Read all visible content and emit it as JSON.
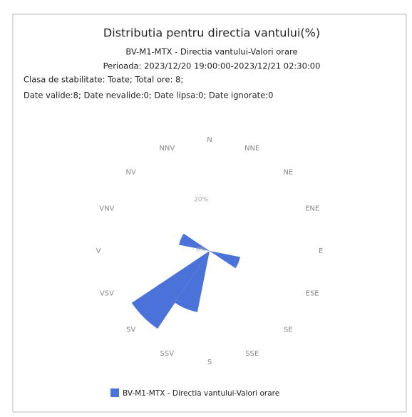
{
  "chart_data": {
    "type": "windrose",
    "title": "Distributia pentru directia vantului(%)",
    "subtitle": [
      "BV-M1-MTX - Directia vantului-Valori orare",
      "Perioada: 2023/12/20 19:00:00-2023/12/21 02:30:00"
    ],
    "annotations": [
      "Clasa de stabilitate: Toate; Total ore: 8;",
      "Date valide:8; Date nevalide:0; Date lipsa:0; Date ignorate:0"
    ],
    "categories": [
      "N",
      "NNE",
      "NE",
      "ENE",
      "E",
      "ESE",
      "SE",
      "SSE",
      "S",
      "SSV",
      "SV",
      "VSV",
      "V",
      "VNV",
      "NV",
      "NNV"
    ],
    "series": [
      {
        "name": "BV-M1-MTX - Directia vantului-Valori orare",
        "color": "#4a72d8",
        "values": [
          0,
          0,
          0,
          0,
          0,
          12.5,
          0,
          0,
          0,
          25,
          37.5,
          0,
          0,
          12.5,
          0,
          0
        ]
      }
    ],
    "ylim": [
      0,
      40
    ],
    "yticks": [
      {
        "value": 0,
        "label": "0%"
      },
      {
        "value": 20,
        "label": "20%"
      }
    ],
    "grid": false
  }
}
